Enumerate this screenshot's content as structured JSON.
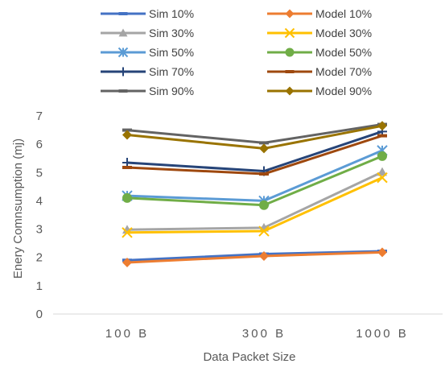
{
  "chart_data": {
    "type": "line",
    "title": "",
    "xlabel": "Data Packet Size",
    "ylabel": "Enery Comnsumption (mj)",
    "categories": [
      "100 B",
      "300 B",
      "1000 B"
    ],
    "ylim": [
      0,
      7
    ],
    "yticks": [
      0,
      1,
      2,
      3,
      4,
      5,
      6,
      7
    ],
    "grid": false,
    "legend_position": "top",
    "series": [
      {
        "name": "Sim 10%",
        "values": [
          1.9,
          2.12,
          2.22
        ],
        "color": "#4472C4",
        "marker": "dash"
      },
      {
        "name": "Model 10%",
        "values": [
          1.82,
          2.05,
          2.18
        ],
        "color": "#ED7D31",
        "marker": "diamond"
      },
      {
        "name": "Sim 30%",
        "values": [
          2.98,
          3.05,
          5.02
        ],
        "color": "#A5A5A5",
        "marker": "triangle"
      },
      {
        "name": "Model 30%",
        "values": [
          2.88,
          2.93,
          4.82
        ],
        "color": "#FFC000",
        "marker": "x"
      },
      {
        "name": "Sim 50%",
        "values": [
          4.18,
          4.0,
          5.78
        ],
        "color": "#5B9BD5",
        "marker": "star"
      },
      {
        "name": "Model 50%",
        "values": [
          4.1,
          3.85,
          5.58
        ],
        "color": "#70AD47",
        "marker": "circle"
      },
      {
        "name": "Sim 70%",
        "values": [
          5.35,
          5.05,
          6.45
        ],
        "color": "#264478",
        "marker": "plus"
      },
      {
        "name": "Model 70%",
        "values": [
          5.18,
          4.95,
          6.3
        ],
        "color": "#9E480E",
        "marker": "dash"
      },
      {
        "name": "Sim 90%",
        "values": [
          6.5,
          6.05,
          6.7
        ],
        "color": "#636363",
        "marker": "dash"
      },
      {
        "name": "Model 90%",
        "values": [
          6.33,
          5.85,
          6.65
        ],
        "color": "#997300",
        "marker": "diamond"
      }
    ]
  }
}
